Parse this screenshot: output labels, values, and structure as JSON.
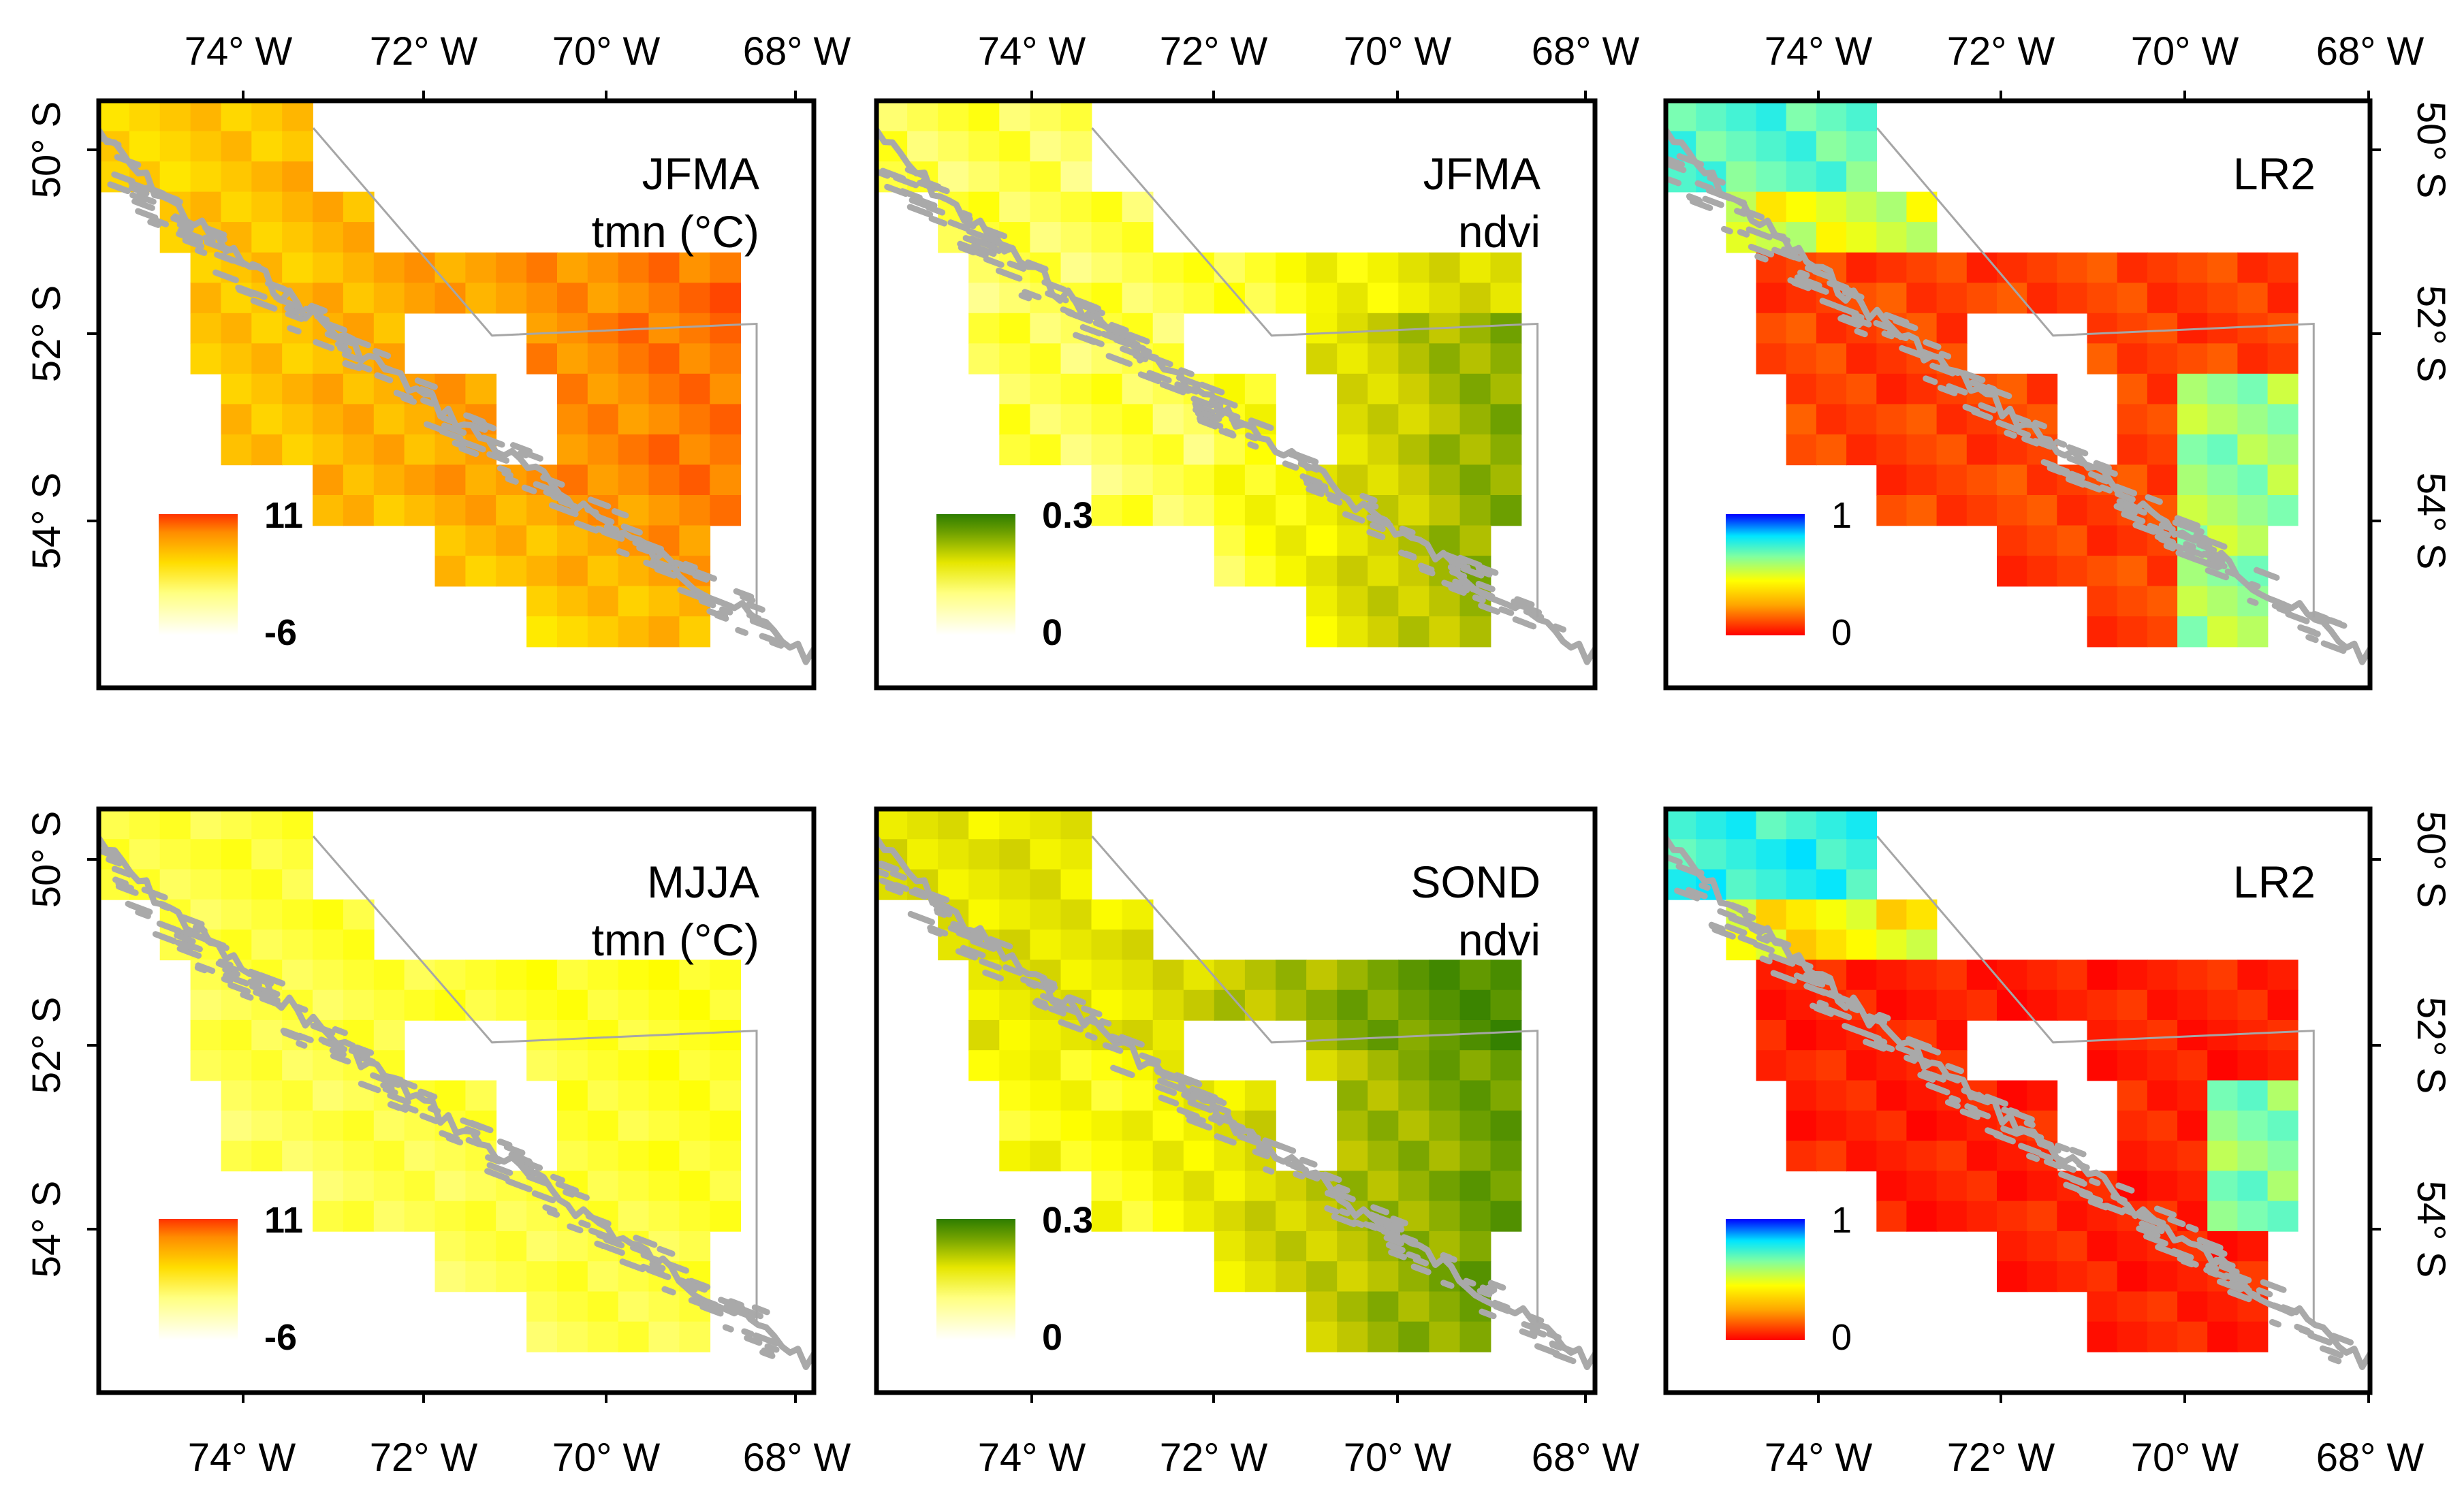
{
  "figure": {
    "top_longitude_labels": [
      "74° W",
      "72° W",
      "70° W",
      "68° W"
    ],
    "bottom_longitude_labels": [
      "74° W",
      "72° W",
      "70° W",
      "68° W"
    ],
    "left_latitude_labels": [
      "50° S",
      "52° S",
      "54° S"
    ],
    "right_latitude_labels": [
      "50° S",
      "52° S",
      "54° S"
    ]
  },
  "panels": [
    {
      "id": "p1",
      "title_line1": "JFMA",
      "title_line2": "tmn (°C)",
      "legend_max": "11",
      "legend_min": "-6",
      "colormap": "temperature",
      "variable": "tmn",
      "season": "JFMA"
    },
    {
      "id": "p2",
      "title_line1": "JFMA",
      "title_line2": "ndvi",
      "legend_max": "0.3",
      "legend_min": "0",
      "colormap": "ndvi",
      "variable": "ndvi",
      "season": "JFMA"
    },
    {
      "id": "p3",
      "title_line1": "LR2",
      "title_line2": "",
      "legend_max": "1",
      "legend_min": "0",
      "colormap": "lr2",
      "variable": "LR2",
      "season": "JFMA"
    },
    {
      "id": "p4",
      "title_line1": "MJJA",
      "title_line2": "tmn (°C)",
      "legend_max": "11",
      "legend_min": "-6",
      "colormap": "temperature",
      "variable": "tmn",
      "season": "MJJA"
    },
    {
      "id": "p5",
      "title_line1": "SOND",
      "title_line2": "ndvi",
      "legend_max": "0.3",
      "legend_min": "0",
      "colormap": "ndvi",
      "variable": "ndvi",
      "season": "SOND"
    },
    {
      "id": "p6",
      "title_line1": "LR2",
      "title_line2": "",
      "legend_max": "1",
      "legend_min": "0",
      "colormap": "lr2",
      "variable": "LR2",
      "season": "SOND"
    }
  ],
  "colors": {
    "coastline": "#a9a9a9",
    "frame": "#000000",
    "temperature_ramp": [
      "#ffffff",
      "#ffff99",
      "#ffff00",
      "#ffcc00",
      "#ff8c00",
      "#ff3300"
    ],
    "ndvi_ramp": [
      "#ffffff",
      "#ffff99",
      "#ffff00",
      "#cccc00",
      "#6ea000",
      "#2e7d00"
    ],
    "lr2_ramp": [
      "#ff0000",
      "#ff7f00",
      "#ffff00",
      "#7fffb0",
      "#00e5ff",
      "#0000ff"
    ]
  }
}
